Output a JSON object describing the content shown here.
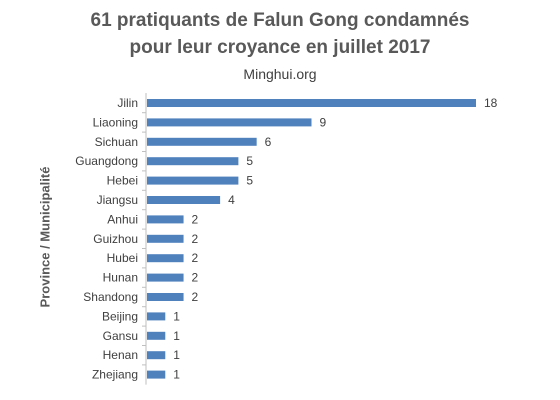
{
  "chart_data": {
    "type": "bar",
    "orientation": "horizontal",
    "title_line1": "61 pratiquants de Falun Gong condamnés",
    "title_line2": "pour leur croyance en juillet 2017",
    "subtitle": "Minghui.org",
    "ylabel": "Province / Municipalité",
    "categories": [
      "Jilin",
      "Liaoning",
      "Sichuan",
      "Guangdong",
      "Hebei",
      "Jiangsu",
      "Anhui",
      "Guizhou",
      "Hubei",
      "Hunan",
      "Shandong",
      "Beijing",
      "Gansu",
      "Henan",
      "Zhejiang"
    ],
    "values": [
      18,
      9,
      6,
      5,
      5,
      4,
      2,
      2,
      2,
      2,
      2,
      1,
      1,
      1,
      1
    ],
    "xlim": [
      0,
      18
    ],
    "grid": false,
    "bar_color": "#4f81bd"
  }
}
